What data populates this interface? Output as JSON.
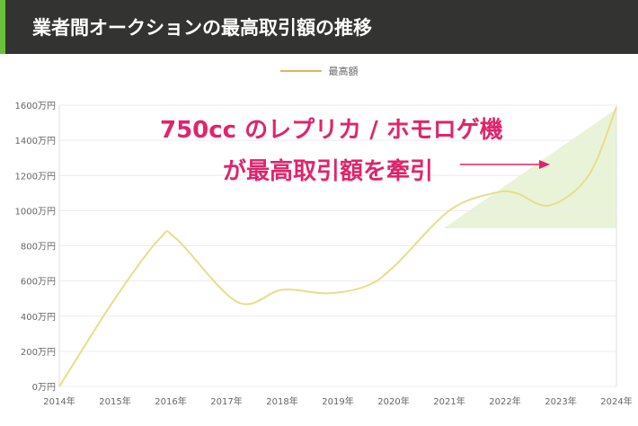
{
  "header": {
    "title": "業者間オークションの最高取引額の推移"
  },
  "colors": {
    "line": "#e8dd8a",
    "accent": "#e0246c",
    "shade": "#e9f3d8",
    "legend": "#e3b35f"
  },
  "annotation": {
    "line1": "750cc のレプリカ / ホモロゲ機",
    "line2": "が最高取引額を牽引"
  },
  "chart_data": {
    "type": "line",
    "title": "業者間オークションの最高取引額の推移",
    "legend": [
      "最高額"
    ],
    "legend_position": "top-center",
    "xlabel": "",
    "ylabel": "",
    "ylim": [
      0,
      1600
    ],
    "xlim": [
      2014,
      2024
    ],
    "y_ticks": [
      "0万円",
      "200万円",
      "400万円",
      "600万円",
      "800万円",
      "1000万円",
      "1200万円",
      "1400万円",
      "1600万円"
    ],
    "x_ticks": [
      "2014年",
      "2015年",
      "2016年",
      "2017年",
      "2018年",
      "2019年",
      "2020年",
      "2021年",
      "2022年",
      "2023年",
      "2024年"
    ],
    "grid": true,
    "series": [
      {
        "name": "最高額",
        "x": [
          2014,
          2015,
          2015.8,
          2016.1,
          2017.2,
          2018,
          2018.8,
          2019.5,
          2020,
          2021,
          2021.8,
          2022.2,
          2022.8,
          2023.5,
          2024
        ],
        "values": [
          0,
          500,
          840,
          840,
          480,
          550,
          530,
          570,
          680,
          1000,
          1100,
          1100,
          1030,
          1200,
          1590
        ]
      }
    ]
  }
}
